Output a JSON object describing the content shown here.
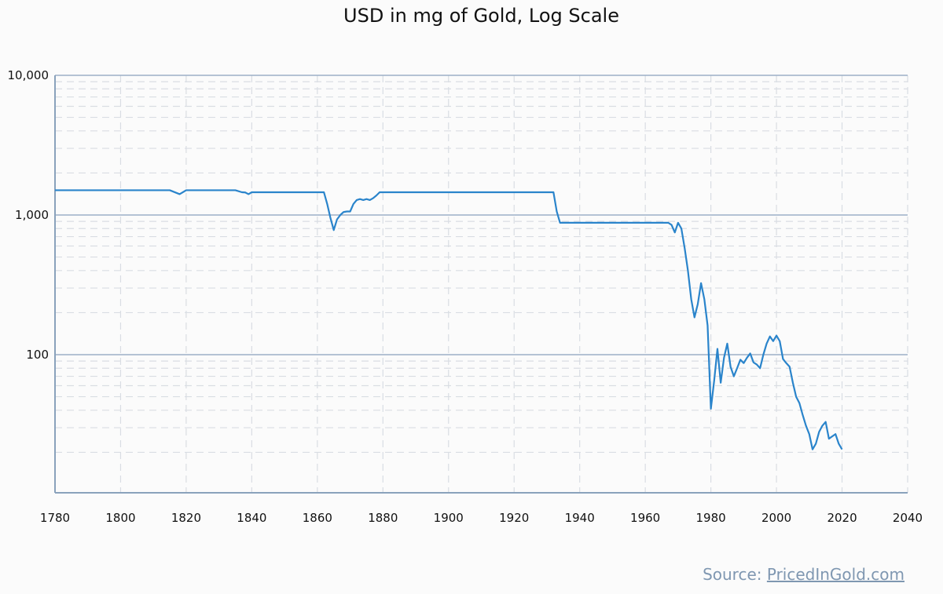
{
  "chart_data": {
    "type": "line",
    "title": "USD in mg of Gold, Log Scale",
    "y_scale": "log",
    "xlim": [
      1780,
      2040
    ],
    "ylim": [
      10,
      10000
    ],
    "grid": true,
    "x_ticks": [
      1780,
      1800,
      1820,
      1840,
      1860,
      1880,
      1900,
      1920,
      1940,
      1960,
      1980,
      2000,
      2020,
      2040
    ],
    "y_ticks": [
      {
        "value": 10000,
        "label": "10,000"
      },
      {
        "value": 1000,
        "label": "1,000"
      },
      {
        "value": 100,
        "label": "100"
      }
    ],
    "series_color": "#2a84cb",
    "series": [
      {
        "name": "",
        "x": [
          1780,
          1815,
          1818,
          1820,
          1835,
          1837,
          1838,
          1839,
          1840,
          1862,
          1863,
          1864,
          1865,
          1866,
          1867,
          1868,
          1869,
          1870,
          1871,
          1872,
          1873,
          1874,
          1875,
          1876,
          1877,
          1878,
          1879,
          1932,
          1933,
          1934,
          1967,
          1968,
          1969,
          1970,
          1971,
          1972,
          1973,
          1974,
          1975,
          1976,
          1977,
          1978,
          1979,
          1980,
          1981,
          1982,
          1983,
          1984,
          1985,
          1986,
          1987,
          1988,
          1989,
          1990,
          1991,
          1992,
          1993,
          1994,
          1995,
          1996,
          1997,
          1998,
          1999,
          2000,
          2001,
          2002,
          2003,
          2004,
          2005,
          2006,
          2007,
          2008,
          2009,
          2010,
          2011,
          2012,
          2013,
          2014,
          2015,
          2016,
          2017,
          2018,
          2019,
          2020
        ],
        "values": [
          1504,
          1504,
          1410,
          1504,
          1504,
          1455,
          1450,
          1410,
          1455,
          1455,
          1200,
          950,
          780,
          930,
          1000,
          1050,
          1060,
          1060,
          1200,
          1280,
          1300,
          1280,
          1300,
          1280,
          1320,
          1380,
          1455,
          1455,
          1060,
          880,
          880,
          850,
          750,
          880,
          800,
          580,
          400,
          250,
          185,
          230,
          325,
          250,
          162,
          41,
          65,
          110,
          63,
          95,
          120,
          82,
          70,
          80,
          92,
          87,
          95,
          102,
          88,
          85,
          80,
          100,
          120,
          135,
          125,
          137,
          125,
          93,
          87,
          82,
          63,
          50,
          45,
          37,
          31,
          27,
          21,
          23,
          28,
          31,
          33,
          25,
          26,
          27,
          23,
          21
        ]
      }
    ]
  },
  "source": {
    "prefix": "Source: ",
    "link_text": "PricedInGold.com"
  }
}
